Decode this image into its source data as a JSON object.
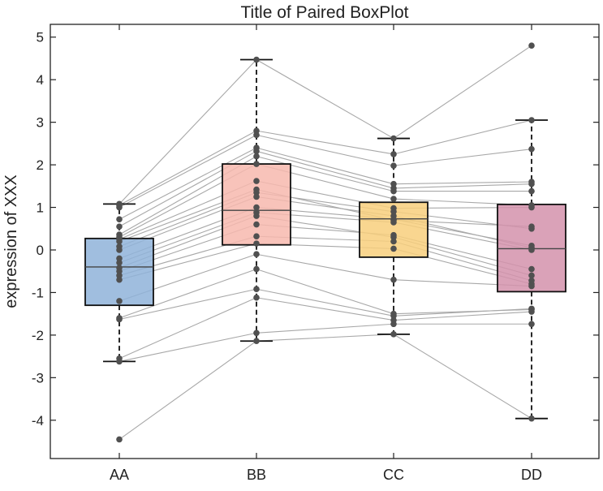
{
  "chart_data": {
    "type": "boxplot",
    "title": "Title of Paired BoxPlot",
    "xlabel": "",
    "ylabel": "expression of XXX",
    "ylim": [
      -4.9,
      5.3
    ],
    "yticks": [
      -4,
      -3,
      -2,
      -1,
      0,
      1,
      2,
      3,
      4,
      5
    ],
    "categories": [
      "AA",
      "BB",
      "CC",
      "DD"
    ],
    "grid": false,
    "colors": {
      "AA": "#8fb3d9",
      "BB": "#f7b8ae",
      "CC": "#f8cf7c",
      "DD": "#d492ac",
      "point": "#505050",
      "pair_line": "#a8a8a8"
    },
    "boxes": [
      {
        "name": "AA",
        "q1": -1.3,
        "median": -0.4,
        "q3": 0.27,
        "whisker_low": -2.62,
        "whisker_high": 1.08
      },
      {
        "name": "BB",
        "q1": 0.12,
        "median": 0.93,
        "q3": 2.02,
        "whisker_low": -2.14,
        "whisker_high": 4.47
      },
      {
        "name": "CC",
        "q1": -0.17,
        "median": 0.73,
        "q3": 1.12,
        "whisker_low": -1.98,
        "whisker_high": 2.62
      },
      {
        "name": "DD",
        "q1": -0.98,
        "median": 0.03,
        "q3": 1.07,
        "whisker_low": -3.96,
        "whisker_high": 3.05
      }
    ],
    "paired_points": [
      [
        -4.45,
        -2.14,
        -1.98,
        -3.96
      ],
      [
        -2.62,
        -1.95,
        -1.74,
        -1.74
      ],
      [
        -2.55,
        -1.12,
        -1.65,
        -1.45
      ],
      [
        -1.63,
        -0.92,
        -1.55,
        -1.38
      ],
      [
        -1.6,
        -0.45,
        -1.5,
        -1.4
      ],
      [
        -1.2,
        -0.1,
        -0.7,
        -0.85
      ],
      [
        -0.7,
        0.15,
        0.03,
        -0.8
      ],
      [
        -0.6,
        0.32,
        0.2,
        -0.72
      ],
      [
        -0.5,
        0.6,
        0.35,
        -0.45
      ],
      [
        -0.42,
        0.8,
        0.3,
        -0.6
      ],
      [
        -0.3,
        0.88,
        0.65,
        0.0
      ],
      [
        -0.2,
        1.0,
        0.72,
        0.1
      ],
      [
        0.0,
        1.25,
        0.8,
        0.05
      ],
      [
        0.08,
        1.35,
        0.9,
        0.5
      ],
      [
        0.2,
        1.42,
        0.7,
        0.55
      ],
      [
        0.25,
        1.62,
        0.98,
        1.0
      ],
      [
        0.3,
        2.02,
        1.2,
        1.05
      ],
      [
        0.36,
        2.2,
        1.38,
        1.38
      ],
      [
        0.55,
        2.32,
        1.45,
        1.55
      ],
      [
        0.72,
        2.4,
        1.55,
        1.6
      ],
      [
        1.0,
        2.7,
        1.98,
        2.37
      ],
      [
        1.05,
        2.8,
        2.25,
        3.05
      ],
      [
        1.08,
        4.47,
        2.62,
        4.8
      ]
    ]
  }
}
